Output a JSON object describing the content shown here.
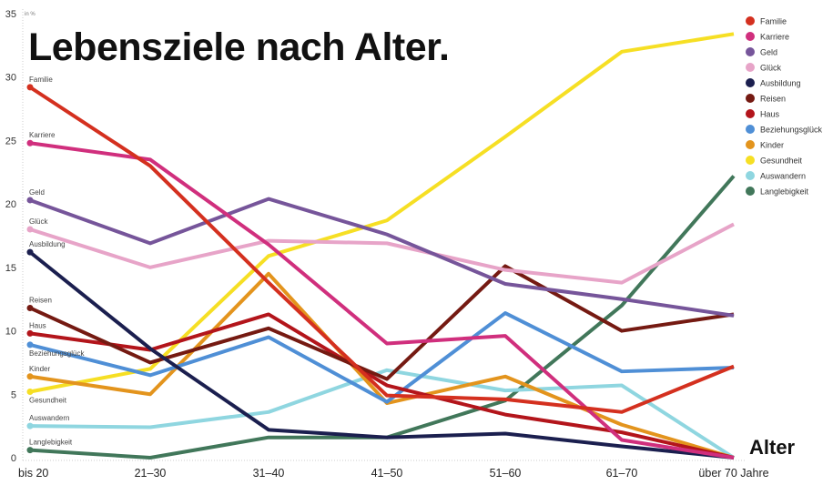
{
  "chart_data": {
    "type": "line",
    "title": "Lebensziele nach Alter.",
    "xlabel": "Alter",
    "ylabel": "in %",
    "ylim": [
      0,
      35
    ],
    "yticks": [
      0,
      5,
      10,
      15,
      20,
      25,
      30,
      35
    ],
    "grid": false,
    "legend_position": "top-right",
    "categories": [
      "bis 20",
      "21–30",
      "31–40",
      "41–50",
      "51–60",
      "61–70",
      "über 70 Jahre"
    ],
    "series": [
      {
        "name": "Familie",
        "color": "#d4301f",
        "values": [
          29.2,
          23.0,
          13.8,
          4.9,
          4.6,
          3.6,
          7.2
        ]
      },
      {
        "name": "Karriere",
        "color": "#d02f7d",
        "values": [
          24.8,
          23.5,
          16.8,
          9.0,
          9.6,
          1.4,
          0
        ]
      },
      {
        "name": "Geld",
        "color": "#76559a",
        "values": [
          20.3,
          16.9,
          20.4,
          17.6,
          13.7,
          12.5,
          11.2
        ]
      },
      {
        "name": "Glück",
        "color": "#e7a4c8",
        "values": [
          18.0,
          15.0,
          17.1,
          16.9,
          14.8,
          13.8,
          18.4
        ]
      },
      {
        "name": "Ausbildung",
        "color": "#1b1f4f",
        "values": [
          16.2,
          8.6,
          2.2,
          1.6,
          1.9,
          0.9,
          0
        ]
      },
      {
        "name": "Reisen",
        "color": "#751a12",
        "values": [
          11.8,
          7.5,
          10.2,
          6.2,
          15.1,
          10.0,
          11.3
        ]
      },
      {
        "name": "Haus",
        "color": "#b3151b",
        "values": [
          9.8,
          8.5,
          11.3,
          5.7,
          3.4,
          2.0,
          0
        ]
      },
      {
        "name": "Beziehungsglück",
        "color": "#4f8fd6",
        "values": [
          8.9,
          6.5,
          9.5,
          4.4,
          11.4,
          6.8,
          7.1
        ]
      },
      {
        "name": "Kinder",
        "color": "#e3941d",
        "values": [
          6.4,
          5.0,
          14.5,
          4.3,
          6.4,
          2.6,
          0
        ]
      },
      {
        "name": "Gesundheit",
        "color": "#f6df24",
        "values": [
          5.2,
          7.0,
          15.9,
          18.7,
          25.3,
          32.0,
          33.4
        ]
      },
      {
        "name": "Auswandern",
        "color": "#8fd6e0",
        "values": [
          2.5,
          2.4,
          3.6,
          6.9,
          5.3,
          5.7,
          0
        ]
      },
      {
        "name": "Langlebigkeit",
        "color": "#41775a",
        "values": [
          0.6,
          0,
          1.6,
          1.6,
          4.5,
          12.0,
          22.2
        ]
      }
    ]
  }
}
